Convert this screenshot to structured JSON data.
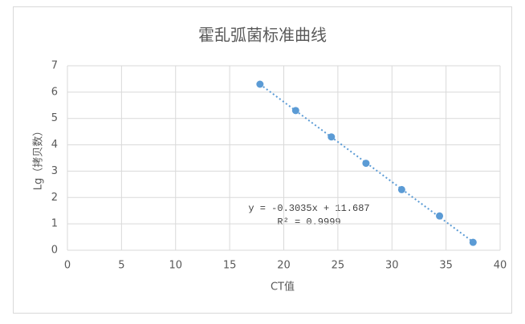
{
  "chart_data": {
    "type": "scatter",
    "title": "霍乱弧菌标准曲线",
    "x_label": "CT值",
    "y_label": "Lg（拷贝数）",
    "series": [
      {
        "name": "Lg（拷贝数）",
        "color": "#5b9bd5",
        "x": [
          17.8,
          21.1,
          24.4,
          27.6,
          30.9,
          34.4,
          37.5
        ],
        "values": [
          6.3,
          5.3,
          4.3,
          3.3,
          2.3,
          1.3,
          0.3
        ]
      }
    ],
    "trendline": "linear",
    "annotations": [
      "y = -0.3035x + 11.687",
      "R² = 0.9999"
    ],
    "xlim": [
      0,
      40
    ],
    "xticks": [
      0,
      5,
      10,
      15,
      20,
      25,
      30,
      35,
      40
    ],
    "ylim": [
      0,
      7
    ],
    "yticks": [
      0,
      1,
      2,
      3,
      4,
      5,
      6,
      7
    ],
    "grid": true
  }
}
